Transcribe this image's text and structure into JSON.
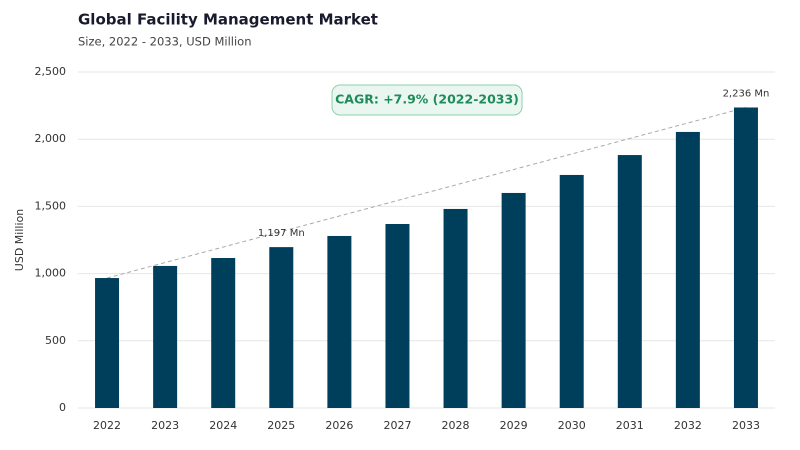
{
  "chart_data": {
    "type": "bar",
    "title": "Global Facility Management Market",
    "subtitle": "Size, 2022 - 2033, USD Million",
    "y_label": "USD Million",
    "annotation": "CAGR: +7.9% (2022-2033)",
    "categories": [
      "2022",
      "2023",
      "2024",
      "2025",
      "2026",
      "2027",
      "2028",
      "2029",
      "2030",
      "2031",
      "2032",
      "2033"
    ],
    "values": [
      967,
      1057,
      1116,
      1197,
      1280,
      1369,
      1481,
      1600,
      1734,
      1882,
      2054,
      2236
    ],
    "value_labels": [
      null,
      null,
      null,
      "1,197 Mn",
      null,
      null,
      null,
      null,
      null,
      null,
      null,
      "2,236 Mn"
    ],
    "color": "#003f5c",
    "ylim": [
      0,
      2500
    ],
    "yticks": [
      0,
      500,
      {
        "value": 1000,
        "label": "1,000"
      },
      {
        "value": 1500,
        "label": "1,500"
      },
      {
        "value": 2000,
        "label": "2,000"
      },
      {
        "value": 2500,
        "label": "2,500"
      }
    ],
    "grid": true
  }
}
